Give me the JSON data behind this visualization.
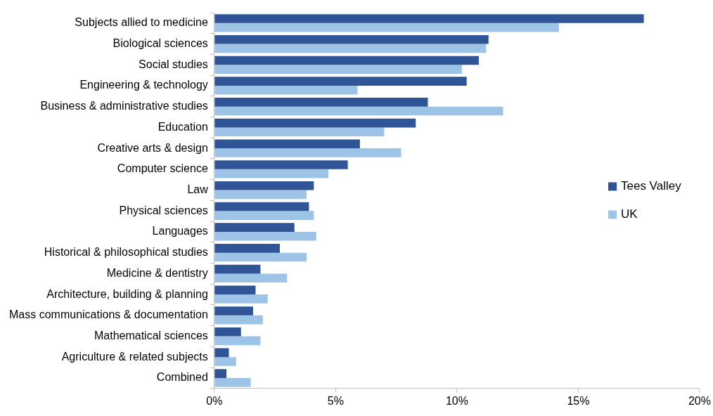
{
  "chart_data": {
    "type": "bar",
    "orientation": "horizontal",
    "categories": [
      "Subjects allied to medicine",
      "Biological sciences",
      "Social studies",
      "Engineering & technology",
      "Business & administrative studies",
      "Education",
      "Creative arts & design",
      "Computer science",
      "Law",
      "Physical sciences",
      "Languages",
      "Historical & philosophical studies",
      "Medicine & dentistry",
      "Architecture, building & planning",
      "Mass communications & documentation",
      "Mathematical sciences",
      "Agriculture & related subjects",
      "Combined"
    ],
    "series": [
      {
        "name": "Tees Valley",
        "color": "#2f5597",
        "values": [
          17.7,
          11.3,
          10.9,
          10.4,
          8.8,
          8.3,
          6.0,
          5.5,
          4.1,
          3.9,
          3.3,
          2.7,
          1.9,
          1.7,
          1.6,
          1.1,
          0.6,
          0.5
        ]
      },
      {
        "name": "UK",
        "color": "#9dc3e6",
        "values": [
          14.2,
          11.2,
          10.2,
          5.9,
          11.9,
          7.0,
          7.7,
          4.7,
          3.8,
          4.1,
          4.2,
          3.8,
          3.0,
          2.2,
          2.0,
          1.9,
          0.9,
          1.5
        ]
      }
    ],
    "xlim": [
      0,
      20
    ],
    "xticks": [
      {
        "value": 0,
        "label": "0%"
      },
      {
        "value": 5,
        "label": "5%"
      },
      {
        "value": 10,
        "label": "10%"
      },
      {
        "value": 15,
        "label": "15%"
      },
      {
        "value": 20,
        "label": "20%"
      }
    ],
    "grid": false,
    "legend": "right"
  }
}
